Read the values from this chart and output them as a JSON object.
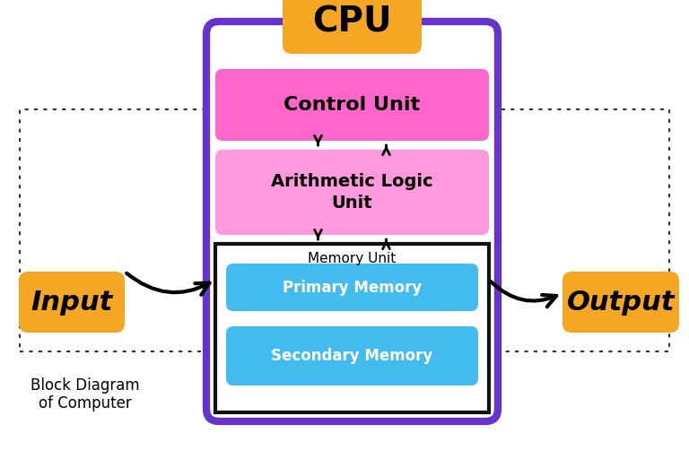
{
  "bg_color": "#ffffff",
  "cpu_label": "CPU",
  "cpu_box_color": "#6633CC",
  "cpu_label_box_color": "#F5A623",
  "control_unit_label": "Control Unit",
  "control_unit_color": "#FF66CC",
  "alu_label": "Arithmetic Logic\nUnit",
  "alu_color": "#FF99DD",
  "memory_unit_label": "Memory Unit",
  "memory_unit_border_color": "#111111",
  "primary_memory_label": "Primary Memory",
  "primary_memory_color": "#44BBEE",
  "secondary_memory_label": "Secondary Memory",
  "secondary_memory_color": "#44BBEE",
  "input_label": "Input",
  "input_box_color": "#F5A623",
  "output_label": "Output",
  "output_box_color": "#F5A623",
  "caption": "Block Diagram\nof Computer",
  "dotted_rect_color": "#333333",
  "arrow_color": "#000000",
  "figsize": [
    7.68,
    5.12
  ],
  "dpi": 100
}
